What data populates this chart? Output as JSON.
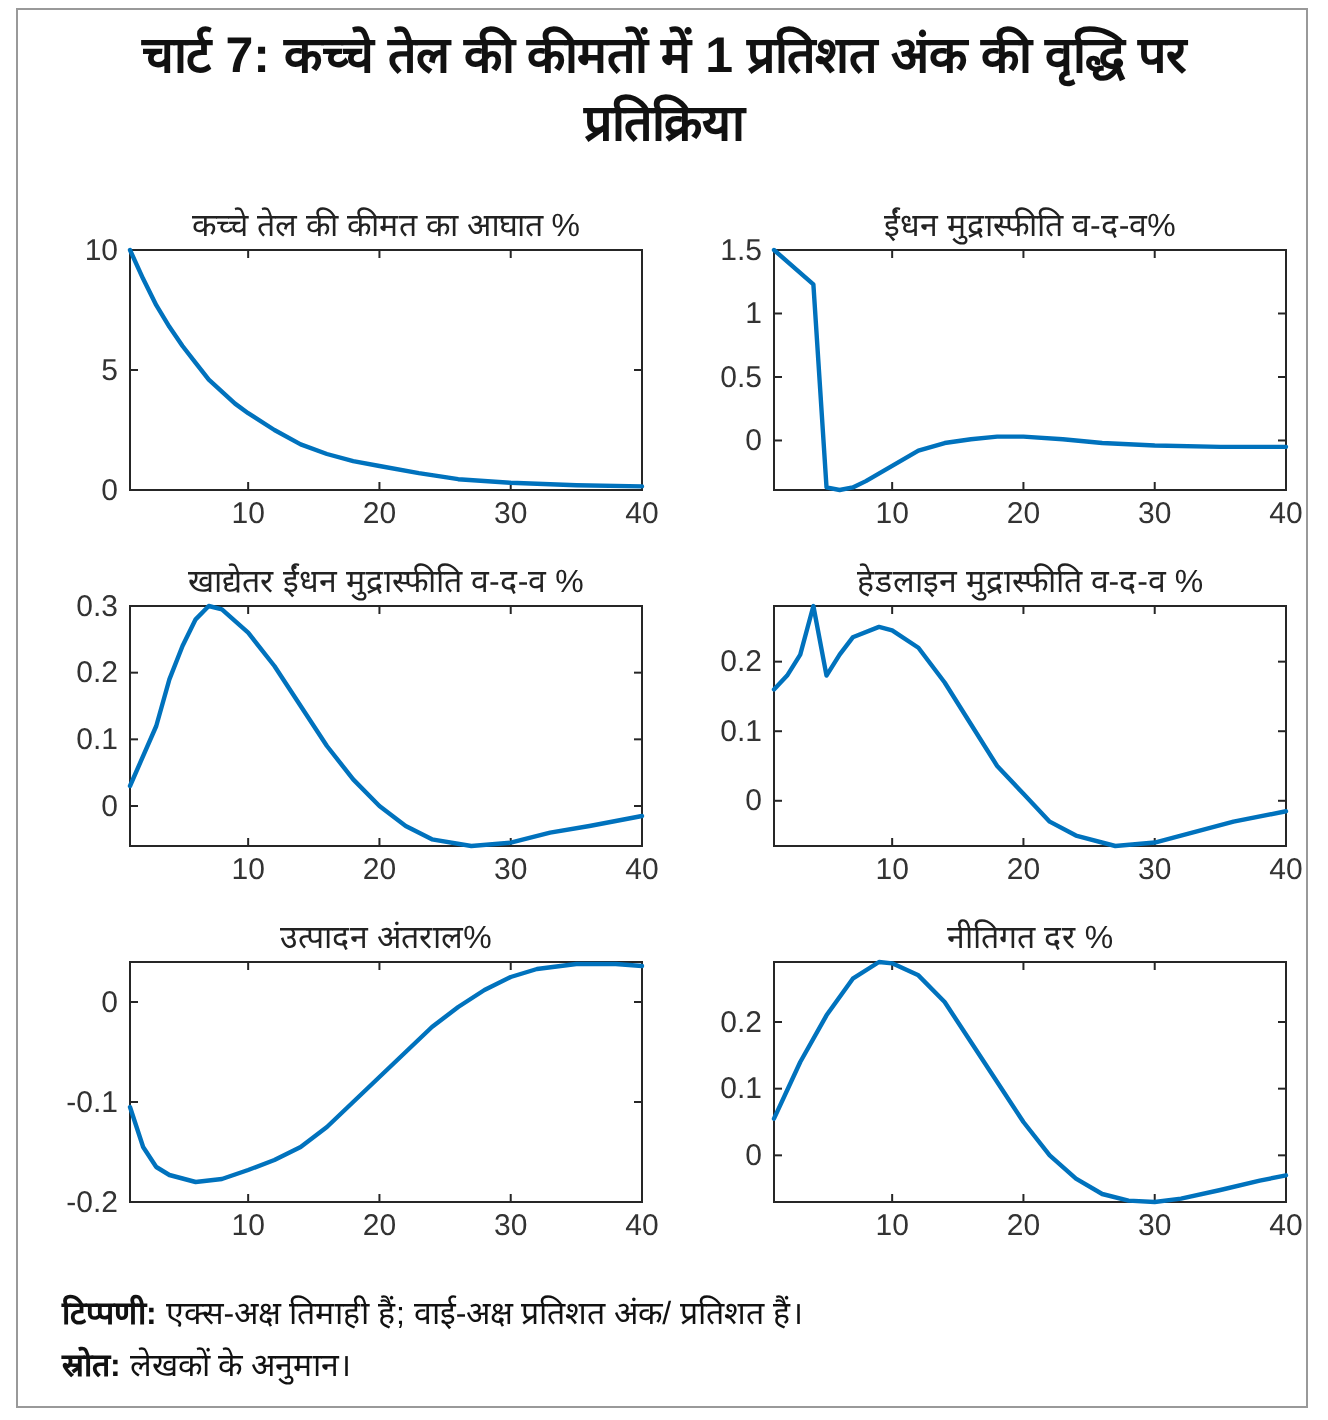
{
  "chart_data": [
    {
      "type": "line",
      "title": "कच्चे तेल की कीमत का आघात %",
      "xlim": [
        1,
        40
      ],
      "xticks": [
        10,
        20,
        30,
        40
      ],
      "ylim": [
        0,
        10
      ],
      "yticks": [
        0,
        5,
        10
      ],
      "series": [
        {
          "color": "#0072bd",
          "x": [
            1,
            2,
            3,
            4,
            5,
            6,
            7,
            8,
            9,
            10,
            12,
            14,
            16,
            18,
            20,
            23,
            26,
            30,
            35,
            40
          ],
          "values": [
            10,
            8.8,
            7.7,
            6.8,
            6.0,
            5.3,
            4.6,
            4.1,
            3.6,
            3.2,
            2.5,
            1.9,
            1.5,
            1.2,
            1.0,
            0.7,
            0.45,
            0.3,
            0.2,
            0.15
          ]
        }
      ]
    },
    {
      "type": "line",
      "title": "ईंधन मुद्रास्फीति व-द-व%",
      "xlim": [
        1,
        40
      ],
      "xticks": [
        10,
        20,
        30,
        40
      ],
      "ylim": [
        -0.39,
        1.5
      ],
      "yticks": [
        0,
        0.5,
        1,
        1.5
      ],
      "series": [
        {
          "color": "#0072bd",
          "x": [
            1,
            4,
            5,
            6,
            7,
            8,
            10,
            12,
            14,
            16,
            18,
            20,
            23,
            26,
            30,
            35,
            40
          ],
          "values": [
            1.5,
            1.23,
            -0.37,
            -0.39,
            -0.37,
            -0.32,
            -0.2,
            -0.08,
            -0.02,
            0.01,
            0.03,
            0.03,
            0.01,
            -0.02,
            -0.04,
            -0.05,
            -0.05
          ]
        }
      ]
    },
    {
      "type": "line",
      "title": "खाद्येतर ईंधन मुद्रास्फीति व-द-व %",
      "xlim": [
        1,
        40
      ],
      "xticks": [
        10,
        20,
        30,
        40
      ],
      "ylim": [
        -0.06,
        0.3
      ],
      "yticks": [
        0,
        0.1,
        0.2,
        0.3
      ],
      "series": [
        {
          "color": "#0072bd",
          "x": [
            1,
            3,
            4,
            5,
            6,
            7,
            8,
            10,
            12,
            14,
            16,
            18,
            20,
            22,
            24,
            27,
            30,
            33,
            36,
            40
          ],
          "values": [
            0.03,
            0.12,
            0.19,
            0.24,
            0.28,
            0.3,
            0.295,
            0.26,
            0.21,
            0.15,
            0.09,
            0.04,
            0.0,
            -0.03,
            -0.05,
            -0.06,
            -0.055,
            -0.04,
            -0.03,
            -0.015
          ]
        }
      ]
    },
    {
      "type": "line",
      "title": "हेडलाइन मुद्रास्फीति व-द-व %",
      "xlim": [
        1,
        40
      ],
      "xticks": [
        10,
        20,
        30,
        40
      ],
      "ylim": [
        -0.065,
        0.28
      ],
      "yticks": [
        0,
        0.1,
        0.2
      ],
      "series": [
        {
          "color": "#0072bd",
          "x": [
            1,
            2,
            3,
            4,
            5,
            6,
            7,
            9,
            10,
            12,
            14,
            16,
            18,
            20,
            22,
            24,
            27,
            30,
            33,
            36,
            40
          ],
          "values": [
            0.16,
            0.18,
            0.21,
            0.28,
            0.18,
            0.21,
            0.235,
            0.25,
            0.245,
            0.22,
            0.17,
            0.11,
            0.05,
            0.01,
            -0.03,
            -0.05,
            -0.065,
            -0.06,
            -0.045,
            -0.03,
            -0.015
          ]
        }
      ]
    },
    {
      "type": "line",
      "title": "उत्पादन अंतराल%",
      "xlim": [
        1,
        40
      ],
      "xticks": [
        10,
        20,
        30,
        40
      ],
      "ylim": [
        -0.2,
        0.04
      ],
      "yticks": [
        -0.2,
        -0.1,
        0
      ],
      "series": [
        {
          "color": "#0072bd",
          "x": [
            1,
            2,
            3,
            4,
            6,
            8,
            10,
            12,
            14,
            16,
            18,
            20,
            22,
            24,
            26,
            28,
            30,
            32,
            35,
            38,
            40
          ],
          "values": [
            -0.105,
            -0.145,
            -0.165,
            -0.173,
            -0.18,
            -0.177,
            -0.168,
            -0.158,
            -0.145,
            -0.125,
            -0.1,
            -0.075,
            -0.05,
            -0.025,
            -0.005,
            0.012,
            0.025,
            0.033,
            0.038,
            0.038,
            0.036
          ]
        }
      ]
    },
    {
      "type": "line",
      "title": "नीतिगत दर %",
      "xlim": [
        1,
        40
      ],
      "xticks": [
        10,
        20,
        30,
        40
      ],
      "ylim": [
        -0.07,
        0.29
      ],
      "yticks": [
        0,
        0.1,
        0.2
      ],
      "series": [
        {
          "color": "#0072bd",
          "x": [
            1,
            3,
            5,
            7,
            9,
            10,
            12,
            14,
            16,
            18,
            20,
            22,
            24,
            26,
            28,
            30,
            32,
            35,
            38,
            40
          ],
          "values": [
            0.055,
            0.14,
            0.21,
            0.265,
            0.29,
            0.288,
            0.27,
            0.23,
            0.17,
            0.11,
            0.05,
            0.0,
            -0.035,
            -0.058,
            -0.068,
            -0.07,
            -0.065,
            -0.052,
            -0.038,
            -0.03
          ]
        }
      ],
      "annotations": [
        "टिप्पणी: एक्स-अक्ष तिमाही हैं; वाई-अक्ष प्रतिशत अंक/ प्रतिशत हैं।",
        "स्रोत: लेखकों के अनुमान।"
      ]
    },
    {
      "type": "other",
      "title": "चार्ट 7: कच्चे तेल की कीमतों में 1 प्रतिशत अंक की वृद्धि पर प्रतिक्रिया"
    }
  ]
}
